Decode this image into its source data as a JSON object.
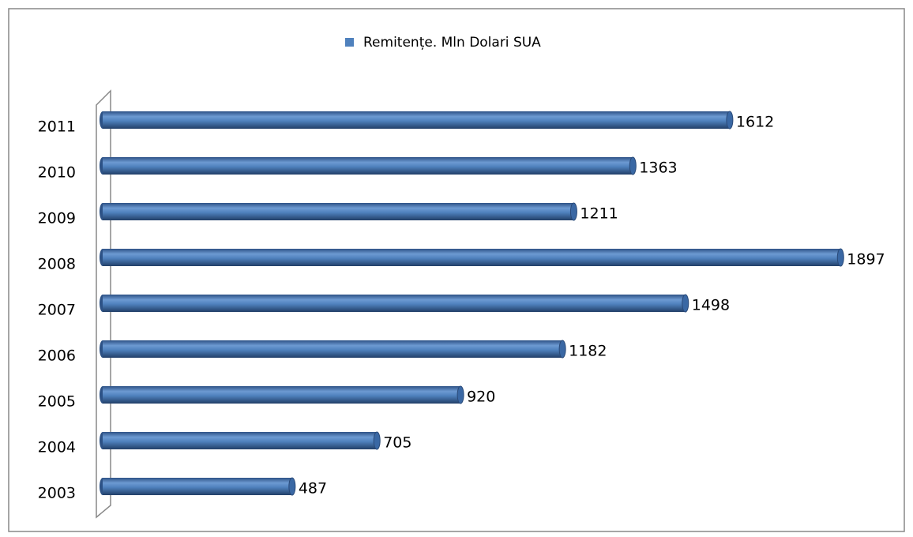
{
  "chart_data": {
    "type": "bar",
    "orientation": "horizontal",
    "categories": [
      "2003",
      "2004",
      "2005",
      "2006",
      "2007",
      "2008",
      "2009",
      "2010",
      "2011"
    ],
    "series": [
      {
        "name": "Remitențe. Mln Dolari SUA",
        "color": "#4f81bd",
        "values": [
          487,
          705,
          920,
          1182,
          1498,
          1897,
          1211,
          1363,
          1612
        ]
      }
    ],
    "legend": "top"
  }
}
